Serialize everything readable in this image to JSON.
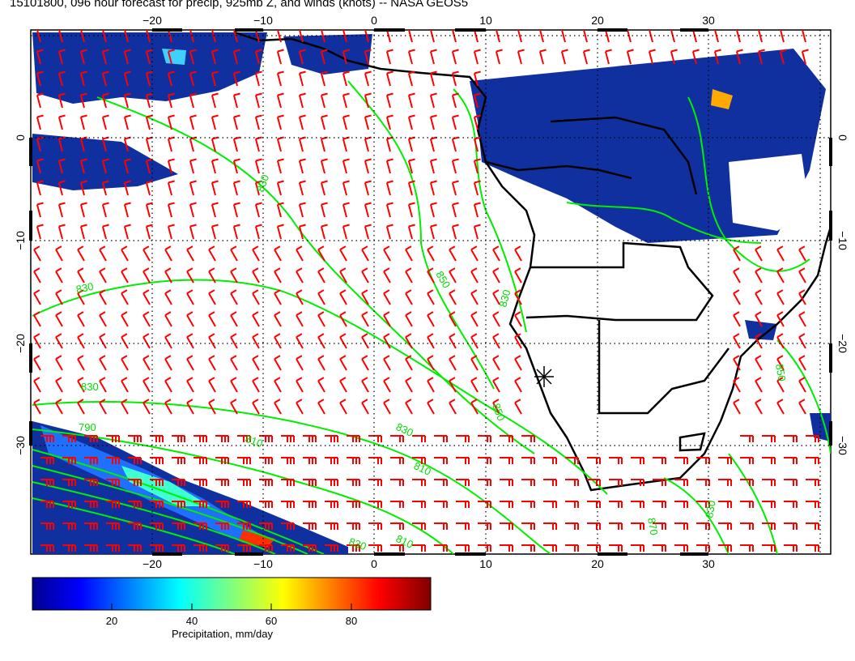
{
  "title": "15101800, 096 hour forecast for precip, 925mb Z, and winds (knots) -- NASA GEOS5",
  "map": {
    "lon_range": [
      -30,
      41
    ],
    "lat_range": [
      -40,
      10
    ],
    "lon_ticks_bottom": [
      "−20",
      "−10",
      "0",
      "10",
      "20",
      "30"
    ],
    "lon_ticks_top": [
      "−20",
      "−10",
      "0",
      "10",
      "20",
      "30"
    ],
    "lat_ticks_left": [
      "0",
      "−10",
      "−20",
      "−30"
    ],
    "lat_ticks_right": [
      "0",
      "−10",
      "−20",
      "−30"
    ],
    "contour_labels": [
      "830",
      "830",
      "790",
      "810",
      "830",
      "810",
      "850",
      "830",
      "810",
      "850",
      "830",
      "870",
      "830",
      "850",
      "830"
    ],
    "colors": {
      "precip_low": "#000090",
      "wind_barbs": "#ff0000",
      "height_contours": "#00ee00",
      "coastlines": "#000000"
    }
  },
  "colorbar": {
    "ticks": [
      "20",
      "40",
      "60",
      "80"
    ],
    "label": "Precipitation, mm/day",
    "range": [
      0,
      100
    ]
  }
}
